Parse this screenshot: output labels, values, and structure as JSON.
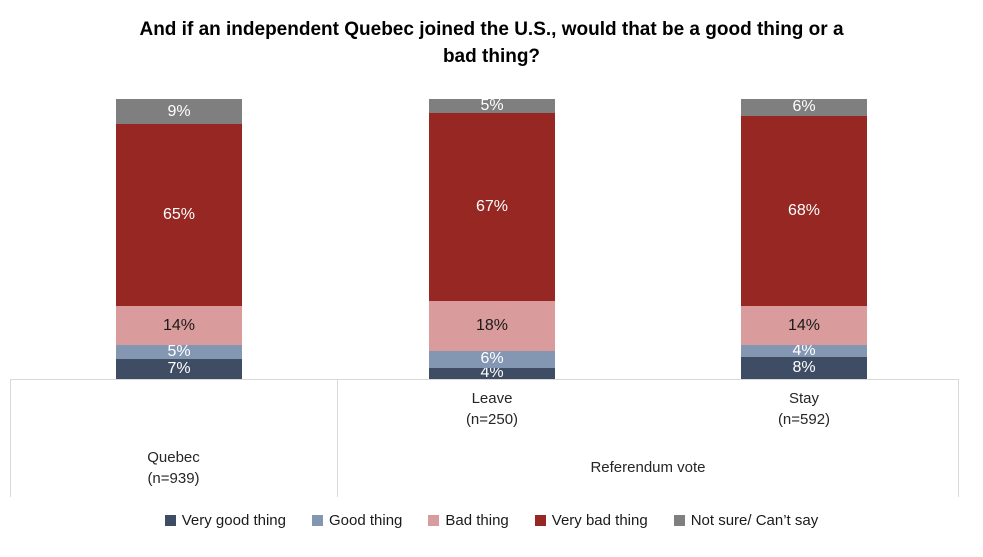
{
  "chart_data": {
    "type": "stacked_bar",
    "title": "And if an independent Quebec joined the U.S., would that be a good thing or a bad thing?",
    "title_lines": [
      "And if an independent Quebec joined the U.S., would that be a good thing or a",
      "bad thing?"
    ],
    "data_label_suffix": "%",
    "ylim": [
      0,
      100
    ],
    "grid": false,
    "legend_position": "bottom",
    "axis_border_color": "#D9D9D9",
    "categories": [
      "Quebec (n=939)",
      "Leave (n=250)",
      "Stay (n=592)"
    ],
    "series": [
      {
        "name": "Very good thing",
        "color": "#3E4D63",
        "label_text_color": "#FFFFFF",
        "values": [
          7,
          4,
          8
        ]
      },
      {
        "name": "Good thing",
        "color": "#8397B3",
        "label_text_color": "#FFFFFF",
        "values": [
          5,
          6,
          4
        ]
      },
      {
        "name": "Bad thing",
        "color": "#D99B9B",
        "label_text_color": "#1A1A1A",
        "values": [
          14,
          18,
          14
        ]
      },
      {
        "name": "Very bad thing",
        "color": "#962723",
        "label_text_color": "#FFFFFF",
        "values": [
          65,
          67,
          68
        ]
      },
      {
        "name": "Not sure/ Can’t say",
        "color": "#7F7F7F",
        "label_text_color": "#FFFFFF",
        "values": [
          9,
          5,
          6
        ]
      }
    ],
    "bars": [
      {
        "id": "quebec",
        "group": "Quebec (n=939)"
      },
      {
        "id": "leave",
        "group": "Referendum vote",
        "sub": "Leave (n=250)"
      },
      {
        "id": "stay",
        "group": "Referendum vote",
        "sub": "Stay (n=592)"
      }
    ],
    "x_axis": {
      "sub_labels": [
        {
          "bar_index": 1,
          "lines": [
            "Leave",
            "(n=250)"
          ]
        },
        {
          "bar_index": 2,
          "lines": [
            "Stay",
            "(n=592)"
          ]
        }
      ],
      "group_labels": [
        {
          "lines": [
            "Quebec",
            "(n=939)"
          ]
        },
        {
          "lines": [
            "Referendum vote"
          ]
        }
      ]
    }
  }
}
